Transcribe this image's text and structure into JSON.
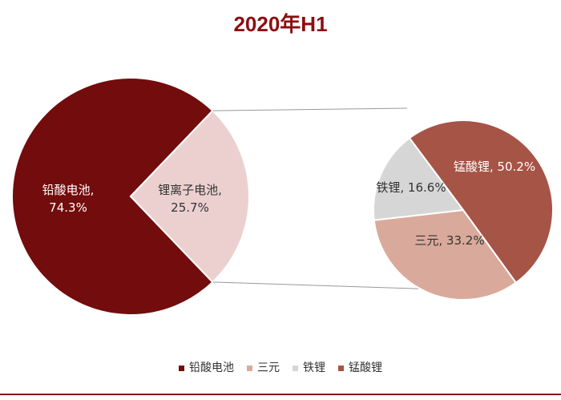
{
  "chart_data": {
    "type": "pie-of-pie",
    "title": "2020年H1",
    "categories": [
      "铅酸电池",
      "锂离子电池"
    ],
    "values": [
      74.3,
      25.7
    ],
    "value_labels": [
      "铅酸电池,\n74.3%",
      "锂离子电池,\n25.7%"
    ],
    "colors": [
      "#730c0c",
      "#ecd0d0"
    ],
    "sub": {
      "categories": [
        "三元",
        "铁锂",
        "锰酸锂"
      ],
      "values": [
        33.2,
        16.6,
        50.2
      ],
      "value_labels": [
        "三元, 33.2%",
        "铁锂, 16.6%",
        "锰酸锂, 50.2%"
      ],
      "colors": [
        "#d9aa9c",
        "#d6d6d6",
        "#a65446"
      ]
    },
    "legend": "bottom"
  }
}
